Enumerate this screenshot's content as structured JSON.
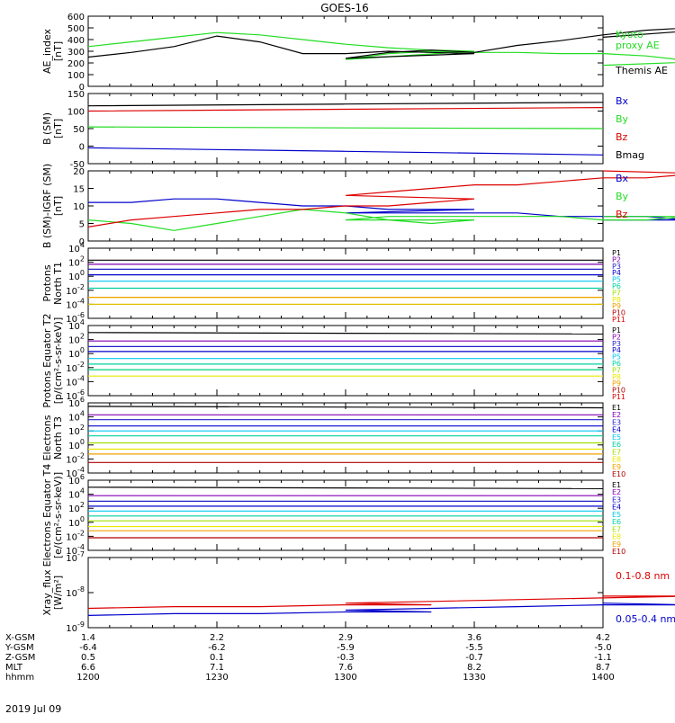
{
  "title": "GOES-16",
  "date": "2019 Jul 09",
  "colors": {
    "black": "#000000",
    "green": "#22dd22",
    "blue": "#0000cc",
    "red": "#dd0000",
    "purple": "#8000b0",
    "navy": "#2222cc",
    "cyan": "#00c8f0",
    "teal": "#00d0a0",
    "yellow": "#e8e800",
    "orange": "#f0a000",
    "darkred": "#b00000",
    "gold": "#e0c000",
    "lime": "#a0e000",
    "green2": "#00d080"
  },
  "ephemeris": {
    "labels": [
      "X-GSM",
      "Y-GSM",
      "Z-GSM",
      "MLT",
      "hhmm"
    ],
    "columns": [
      [
        "1.4",
        "-6.4",
        "0.5",
        "6.6",
        "1200"
      ],
      [
        "2.2",
        "-6.2",
        "0.1",
        "7.1",
        "1230"
      ],
      [
        "2.9",
        "-5.9",
        "-0.3",
        "7.6",
        "1300"
      ],
      [
        "3.6",
        "-5.5",
        "-0.7",
        "8.2",
        "1330"
      ],
      [
        "4.2",
        "-5.0",
        "-1.1",
        "8.7",
        "1400"
      ]
    ]
  },
  "chart_data": [
    {
      "type": "line",
      "ylabel": "AE_index [nT]",
      "ylim": [
        0,
        600
      ],
      "yticks": [
        "0",
        "100",
        "200",
        "300",
        "400",
        "500",
        "600"
      ],
      "legend": [
        "Kyoto",
        "proxy AE",
        "Themis AE"
      ],
      "x": [
        1200,
        1210,
        1220,
        1230,
        1240,
        1250,
        1260,
        1270,
        1280,
        1290,
        1300,
        1310,
        1320,
        1330,
        1340,
        1350,
        1360,
        1370,
        1380,
        1390,
        1400
      ],
      "series": [
        {
          "name": "Kyoto proxy AE",
          "color": "green",
          "values": [
            340,
            380,
            420,
            460,
            440,
            400,
            360,
            330,
            310,
            300,
            230,
            280,
            300,
            290,
            290,
            280,
            280,
            260,
            220,
            220,
            180
          ]
        },
        {
          "name": "Themis AE",
          "color": "black",
          "values": [
            250,
            290,
            340,
            430,
            380,
            280,
            280,
            300,
            290,
            280,
            240,
            290,
            310,
            290,
            350,
            390,
            440,
            480,
            500,
            500,
            420
          ]
        }
      ]
    },
    {
      "type": "line",
      "ylabel": "B (SM) [nT]",
      "ylim": [
        -50,
        150
      ],
      "yticks": [
        "-50",
        "0",
        "50",
        "100",
        "150"
      ],
      "legend": [
        "Bx",
        "By",
        "Bz",
        "Bmag"
      ],
      "x": [
        1200,
        1300,
        1400
      ],
      "series": [
        {
          "name": "Bx",
          "color": "blue",
          "values": [
            -5,
            -15,
            -25
          ]
        },
        {
          "name": "By",
          "color": "green",
          "values": [
            55,
            52,
            50
          ]
        },
        {
          "name": "Bz",
          "color": "red",
          "values": [
            100,
            105,
            110
          ]
        },
        {
          "name": "Bmag",
          "color": "black",
          "values": [
            115,
            120,
            125
          ]
        }
      ]
    },
    {
      "type": "line",
      "ylabel": "B (SM)-IGRF (SM) [nT]",
      "ylim": [
        0,
        20
      ],
      "yticks": [
        "0",
        "5",
        "10",
        "15",
        "20"
      ],
      "legend": [
        "Bx",
        "By",
        "Bz"
      ],
      "x": [
        1200,
        1210,
        1220,
        1230,
        1240,
        1250,
        1260,
        1270,
        1280,
        1290,
        1300,
        1310,
        1320,
        1330,
        1340,
        1350,
        1360,
        1370,
        1380,
        1390,
        1400
      ],
      "series": [
        {
          "name": "Bx",
          "color": "blue",
          "values": [
            11,
            11,
            12,
            12,
            11,
            10,
            10,
            9,
            9,
            9,
            8,
            8,
            8,
            8,
            8,
            7,
            7,
            7,
            6,
            6,
            6
          ]
        },
        {
          "name": "By",
          "color": "green",
          "values": [
            6,
            5,
            3,
            5,
            7,
            9,
            8,
            6,
            5,
            6,
            6,
            7,
            7,
            7,
            7,
            7,
            6,
            6,
            7,
            7,
            7
          ]
        },
        {
          "name": "Bz",
          "color": "red",
          "values": [
            4,
            6,
            7,
            8,
            9,
            9,
            10,
            10,
            11,
            12,
            13,
            14,
            15,
            16,
            16,
            17,
            18,
            18,
            19,
            19,
            20
          ]
        }
      ]
    },
    {
      "type": "line",
      "ylabel": "Protons North T1",
      "log": true,
      "ylim_exp": [
        -6,
        4
      ],
      "yticks": [
        "10^-6",
        "10^-4",
        "10^-2",
        "10^0",
        "10^2",
        "10^4"
      ],
      "legend": [
        "P1",
        "P2",
        "P3",
        "P4",
        "P5",
        "P6",
        "P7",
        "P8",
        "P9",
        "P10",
        "P11"
      ],
      "x": [
        1200,
        1400
      ],
      "series": [
        {
          "name": "P1",
          "color": "black",
          "values_exp": [
            2.3,
            2.3
          ]
        },
        {
          "name": "P2",
          "color": "purple",
          "values_exp": [
            1.7,
            1.7
          ]
        },
        {
          "name": "P3",
          "color": "navy",
          "values_exp": [
            1.0,
            1.0
          ]
        },
        {
          "name": "P4",
          "color": "blue",
          "values_exp": [
            0.2,
            0.2
          ]
        },
        {
          "name": "P5",
          "color": "cyan",
          "values_exp": [
            -0.7,
            -0.7
          ]
        },
        {
          "name": "P6",
          "color": "teal",
          "values_exp": [
            -1.7,
            -1.7
          ]
        },
        {
          "name": "P7",
          "color": "yellow",
          "values_exp": [
            -3.0,
            -3.0
          ]
        },
        {
          "name": "P8",
          "color": "orange",
          "values_exp": [
            -3.0,
            -3.0
          ]
        },
        {
          "name": "P9",
          "color": "gold",
          "values_exp": [
            -4.0,
            -4.0
          ]
        }
      ]
    },
    {
      "type": "line",
      "ylabel": "Protons Equator T2 [p/(cm²-s-sr-keV)]",
      "log": true,
      "ylim_exp": [
        -6,
        4
      ],
      "yticks": [
        "10^-6",
        "10^-4",
        "10^-2",
        "10^0",
        "10^2",
        "10^4"
      ],
      "legend": [
        "P1",
        "P2",
        "P3",
        "P4",
        "P5",
        "P6",
        "P7",
        "P8",
        "P9",
        "P10",
        "P11"
      ],
      "x": [
        1200,
        1400
      ],
      "series": [
        {
          "name": "P1",
          "color": "black",
          "values_exp": [
            3.0,
            2.8
          ]
        },
        {
          "name": "P2",
          "color": "purple",
          "values_exp": [
            1.8,
            1.8
          ]
        },
        {
          "name": "P3",
          "color": "navy",
          "values_exp": [
            1.0,
            1.0
          ]
        },
        {
          "name": "P4",
          "color": "blue",
          "values_exp": [
            0.3,
            0.3
          ]
        },
        {
          "name": "P5",
          "color": "cyan",
          "values_exp": [
            -0.7,
            -0.7
          ]
        },
        {
          "name": "P6",
          "color": "teal",
          "values_exp": [
            -1.5,
            -1.5
          ]
        },
        {
          "name": "P7",
          "color": "green2",
          "values_exp": [
            -2.3,
            -2.3
          ]
        },
        {
          "name": "P8",
          "color": "yellow",
          "values_exp": [
            -3.2,
            -3.2
          ]
        }
      ]
    },
    {
      "type": "line",
      "ylabel": "Electrons North T3",
      "log": true,
      "ylim_exp": [
        -4,
        6
      ],
      "yticks": [
        "10^-4",
        "10^-2",
        "10^0",
        "10^2",
        "10^4",
        "10^6"
      ],
      "legend": [
        "E1",
        "E2",
        "E3",
        "E4",
        "E5",
        "E6",
        "E7",
        "E8",
        "E9",
        "E10"
      ],
      "x": [
        1200,
        1400
      ],
      "series": [
        {
          "name": "E1",
          "color": "black",
          "values_exp": [
            5.5,
            5.3
          ]
        },
        {
          "name": "E2",
          "color": "purple",
          "values_exp": [
            4.3,
            4.3
          ]
        },
        {
          "name": "E3",
          "color": "navy",
          "values_exp": [
            3.6,
            3.6
          ]
        },
        {
          "name": "E4",
          "color": "blue",
          "values_exp": [
            2.7,
            2.7
          ]
        },
        {
          "name": "E5",
          "color": "cyan",
          "values_exp": [
            2.0,
            2.0
          ]
        },
        {
          "name": "E6",
          "color": "teal",
          "values_exp": [
            1.3,
            1.3
          ]
        },
        {
          "name": "E7",
          "color": "lime",
          "values_exp": [
            0.3,
            0.3
          ]
        },
        {
          "name": "E8",
          "color": "yellow",
          "values_exp": [
            -0.6,
            -0.6
          ]
        },
        {
          "name": "E9",
          "color": "orange",
          "values_exp": [
            -1.3,
            -1.3
          ]
        },
        {
          "name": "E10",
          "color": "darkred",
          "values_exp": [
            -2.5,
            -2.5
          ]
        }
      ]
    },
    {
      "type": "line",
      "ylabel": "Electrons Equator T4 [e/(cm²-s-sr-keV)]",
      "log": true,
      "ylim_exp": [
        -4,
        6
      ],
      "yticks": [
        "10^-4",
        "10^-2",
        "10^0",
        "10^2",
        "10^4",
        "10^6"
      ],
      "legend": [
        "E1",
        "E2",
        "E3",
        "E4",
        "E5",
        "E6",
        "E7",
        "E8",
        "E9",
        "E10"
      ],
      "x": [
        1200,
        1400
      ],
      "series": [
        {
          "name": "E1",
          "color": "black",
          "values_exp": [
            5.0,
            4.8
          ]
        },
        {
          "name": "E2",
          "color": "purple",
          "values_exp": [
            3.8,
            3.8
          ]
        },
        {
          "name": "E3",
          "color": "navy",
          "values_exp": [
            3.0,
            3.0
          ]
        },
        {
          "name": "E4",
          "color": "blue",
          "values_exp": [
            2.3,
            2.3
          ]
        },
        {
          "name": "E5",
          "color": "cyan",
          "values_exp": [
            1.6,
            1.6
          ]
        },
        {
          "name": "E6",
          "color": "teal",
          "values_exp": [
            0.9,
            0.9
          ]
        },
        {
          "name": "E7",
          "color": "lime",
          "values_exp": [
            0.2,
            0.2
          ]
        },
        {
          "name": "E8",
          "color": "yellow",
          "values_exp": [
            -0.6,
            -0.6
          ]
        },
        {
          "name": "E9",
          "color": "orange",
          "values_exp": [
            -1.2,
            -1.2
          ]
        },
        {
          "name": "E10",
          "color": "darkred",
          "values_exp": [
            -2.2,
            -2.2
          ]
        }
      ]
    },
    {
      "type": "line",
      "ylabel": "Xray_flux [W/m²]",
      "log": true,
      "ylim_exp": [
        -9,
        -7
      ],
      "yticks": [
        "10^-9",
        "10^-8",
        "10^-7"
      ],
      "legend": [
        "0.1-0.8 nm",
        "0.05-0.4 nm"
      ],
      "x": [
        1200,
        1220,
        1240,
        1260,
        1280,
        1300,
        1320,
        1340,
        1360,
        1380,
        1400
      ],
      "series": [
        {
          "name": "0.1-0.8 nm",
          "color": "red",
          "values_exp": [
            -8.45,
            -8.4,
            -8.4,
            -8.35,
            -8.35,
            -8.3,
            -8.25,
            -8.2,
            -8.15,
            -8.1,
            -8.1
          ]
        },
        {
          "name": "0.05-0.4 nm",
          "color": "blue",
          "values_exp": [
            -8.65,
            -8.6,
            -8.6,
            -8.55,
            -8.55,
            -8.5,
            -8.45,
            -8.4,
            -8.35,
            -8.35,
            -8.3
          ]
        }
      ]
    }
  ]
}
